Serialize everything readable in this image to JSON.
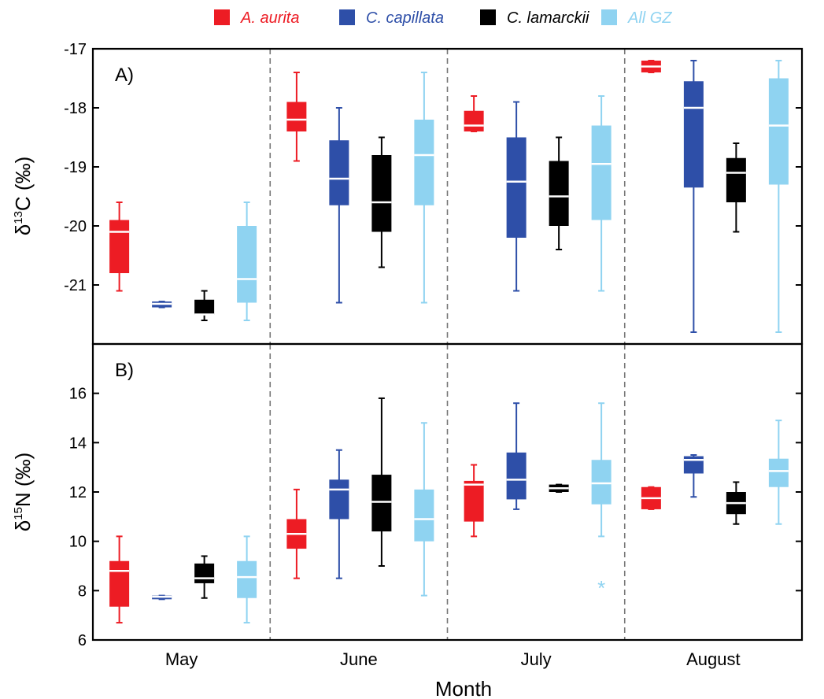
{
  "chart_data": {
    "type": "box",
    "xlabel": "Month",
    "categories": [
      "May",
      "June",
      "July",
      "August"
    ],
    "legend_position": "top-center",
    "series": [
      {
        "name": "A. aurita",
        "color": "#ed1c24"
      },
      {
        "name": "C. capillata",
        "color": "#2e4fa8"
      },
      {
        "name": "C. lamarckii",
        "color": "#000000"
      },
      {
        "name": "All GZ",
        "color": "#8fd3f1"
      }
    ],
    "panels": [
      {
        "label": "A)",
        "ylabel": {
          "prefix": "δ",
          "sup": "13",
          "main": "C (‰)"
        },
        "ylim": [
          -22,
          -17
        ],
        "yticks": [
          "-17",
          "-18",
          "-19",
          "-20",
          "-21"
        ],
        "data": {
          "May": [
            {
              "series": "A. aurita",
              "min": -21.1,
              "q1": -20.8,
              "median": -20.1,
              "q3": -19.9,
              "max": -19.6
            },
            {
              "series": "C. capillata",
              "min": -21.38,
              "q1": -21.38,
              "median": -21.32,
              "q3": -21.28,
              "max": -21.28
            },
            {
              "series": "C. lamarckii",
              "min": -21.6,
              "q1": -21.5,
              "median": -21.5,
              "q3": -21.25,
              "max": -21.1
            },
            {
              "series": "All GZ",
              "min": -21.6,
              "q1": -21.3,
              "median": -20.9,
              "q3": -20.0,
              "max": -19.6
            }
          ],
          "June": [
            {
              "series": "A. aurita",
              "min": -18.9,
              "q1": -18.4,
              "median": -18.2,
              "q3": -17.9,
              "max": -17.4
            },
            {
              "series": "C. capillata",
              "min": -21.3,
              "q1": -19.65,
              "median": -19.2,
              "q3": -18.55,
              "max": -18.0
            },
            {
              "series": "C. lamarckii",
              "min": -20.7,
              "q1": -20.1,
              "median": -19.6,
              "q3": -18.8,
              "max": -18.5
            },
            {
              "series": "All GZ",
              "min": -21.3,
              "q1": -19.65,
              "median": -18.8,
              "q3": -18.2,
              "max": -17.4
            }
          ],
          "July": [
            {
              "series": "A. aurita",
              "min": -18.4,
              "q1": -18.4,
              "median": -18.3,
              "q3": -18.05,
              "max": -17.8
            },
            {
              "series": "C. capillata",
              "min": -21.1,
              "q1": -20.2,
              "median": -19.25,
              "q3": -18.5,
              "max": -17.9
            },
            {
              "series": "C. lamarckii",
              "min": -20.4,
              "q1": -20.0,
              "median": -19.5,
              "q3": -18.9,
              "max": -18.5
            },
            {
              "series": "All GZ",
              "min": -21.1,
              "q1": -19.9,
              "median": -18.95,
              "q3": -18.3,
              "max": -17.8
            }
          ],
          "August": [
            {
              "series": "A. aurita",
              "min": -17.4,
              "q1": -17.4,
              "median": -17.3,
              "q3": -17.2,
              "max": -17.2
            },
            {
              "series": "C. capillata",
              "min": -21.8,
              "q1": -19.35,
              "median": -18.0,
              "q3": -17.55,
              "max": -17.2
            },
            {
              "series": "C. lamarckii",
              "min": -20.1,
              "q1": -19.6,
              "median": -19.1,
              "q3": -18.85,
              "max": -18.6
            },
            {
              "series": "All GZ",
              "min": -21.8,
              "q1": -19.3,
              "median": -18.3,
              "q3": -17.5,
              "max": -17.2
            }
          ]
        },
        "outliers": []
      },
      {
        "label": "B)",
        "ylabel": {
          "prefix": "δ",
          "sup": "15",
          "main": "N (‰)"
        },
        "ylim": [
          6,
          18
        ],
        "yticks": [
          "6",
          "8",
          "10",
          "12",
          "14",
          "16"
        ],
        "data": {
          "May": [
            {
              "series": "A. aurita",
              "min": 6.7,
              "q1": 7.35,
              "median": 8.8,
              "q3": 9.2,
              "max": 10.2
            },
            {
              "series": "C. capillata",
              "min": 7.65,
              "q1": 7.65,
              "median": 7.75,
              "q3": 7.8,
              "max": 7.8
            },
            {
              "series": "C. lamarckii",
              "min": 7.7,
              "q1": 8.3,
              "median": 8.5,
              "q3": 9.1,
              "max": 9.4
            },
            {
              "series": "All GZ",
              "min": 6.7,
              "q1": 7.7,
              "median": 8.55,
              "q3": 9.2,
              "max": 10.2
            }
          ],
          "June": [
            {
              "series": "A. aurita",
              "min": 8.5,
              "q1": 9.7,
              "median": 10.3,
              "q3": 10.9,
              "max": 12.1
            },
            {
              "series": "C. capillata",
              "min": 8.5,
              "q1": 10.9,
              "median": 12.1,
              "q3": 12.5,
              "max": 13.7
            },
            {
              "series": "C. lamarckii",
              "min": 9.0,
              "q1": 10.4,
              "median": 11.6,
              "q3": 12.7,
              "max": 15.8
            },
            {
              "series": "All GZ",
              "min": 7.8,
              "q1": 10.0,
              "median": 10.9,
              "q3": 12.1,
              "max": 14.8
            }
          ],
          "July": [
            {
              "series": "A. aurita",
              "min": 10.2,
              "q1": 10.8,
              "median": 12.3,
              "q3": 12.45,
              "max": 13.1
            },
            {
              "series": "C. capillata",
              "min": 11.3,
              "q1": 11.7,
              "median": 12.5,
              "q3": 13.6,
              "max": 15.6
            },
            {
              "series": "C. lamarckii",
              "min": 12.0,
              "q1": 12.0,
              "median": 12.15,
              "q3": 12.3,
              "max": 12.3
            },
            {
              "series": "All GZ",
              "min": 10.2,
              "q1": 11.5,
              "median": 12.35,
              "q3": 13.3,
              "max": 15.6
            }
          ],
          "August": [
            {
              "series": "A. aurita",
              "min": 11.3,
              "q1": 11.3,
              "median": 11.75,
              "q3": 12.2,
              "max": 12.2
            },
            {
              "series": "C. capillata",
              "min": 11.8,
              "q1": 12.75,
              "median": 13.3,
              "q3": 13.45,
              "max": 13.5
            },
            {
              "series": "C. lamarckii",
              "min": 10.7,
              "q1": 11.1,
              "median": 11.55,
              "q3": 12.0,
              "max": 12.4
            },
            {
              "series": "All GZ",
              "min": 10.7,
              "q1": 12.2,
              "median": 12.85,
              "q3": 13.35,
              "max": 14.9
            }
          ]
        },
        "outliers": [
          {
            "month": "July",
            "series": "All GZ",
            "value": 8.2,
            "symbol": "*"
          }
        ]
      }
    ]
  }
}
